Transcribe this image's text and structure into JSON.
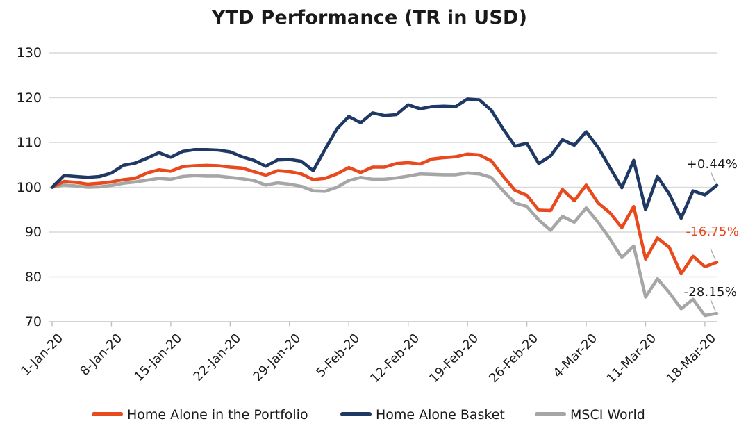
{
  "title": "YTD Performance (TR in USD)",
  "colors": {
    "portfolio": "#E8491D",
    "basket": "#1F3864",
    "msci": "#A6A6A6",
    "gridline": "#D9D9D9",
    "axis_line": "#C9C9C9",
    "tick": "#BFBFBF",
    "leader_line": "#ADADAD",
    "text": "#1A1A1A"
  },
  "legend": {
    "items": [
      {
        "label": "Home Alone in the Portfolio",
        "color": "#E8491D"
      },
      {
        "label": "Home Alone Basket",
        "color": "#1F3864"
      },
      {
        "label": "MSCI World",
        "color": "#A6A6A6"
      }
    ]
  },
  "annotations": [
    {
      "text": "+0.44%",
      "series": "Home Alone Basket",
      "color": "#1A1A1A"
    },
    {
      "text": "-16.75%",
      "series": "Home Alone in the Portfolio",
      "color": "#E8491D"
    },
    {
      "text": "-28.15%",
      "series": "MSCI World",
      "color": "#1A1A1A"
    }
  ],
  "chart_data": {
    "type": "line",
    "title": "YTD Performance (TR in USD)",
    "xlabel": "",
    "ylabel": "",
    "ylim": [
      70,
      130
    ],
    "y_ticks": [
      70,
      80,
      90,
      100,
      110,
      120,
      130
    ],
    "grid": true,
    "legend_position": "bottom",
    "x_tick_labels": [
      "1-Jan-20",
      "8-Jan-20",
      "15-Jan-20",
      "22-Jan-20",
      "29-Jan-20",
      "5-Feb-20",
      "12-Feb-20",
      "19-Feb-20",
      "26-Feb-20",
      "4-Mar-20",
      "11-Mar-20",
      "18-Mar-20"
    ],
    "x_tick_every": 5,
    "x": [
      "1-Jan-20",
      "2-Jan-20",
      "3-Jan-20",
      "6-Jan-20",
      "7-Jan-20",
      "8-Jan-20",
      "9-Jan-20",
      "10-Jan-20",
      "13-Jan-20",
      "14-Jan-20",
      "15-Jan-20",
      "16-Jan-20",
      "17-Jan-20",
      "20-Jan-20",
      "21-Jan-20",
      "22-Jan-20",
      "23-Jan-20",
      "24-Jan-20",
      "27-Jan-20",
      "28-Jan-20",
      "29-Jan-20",
      "30-Jan-20",
      "31-Jan-20",
      "3-Feb-20",
      "4-Feb-20",
      "5-Feb-20",
      "6-Feb-20",
      "7-Feb-20",
      "10-Feb-20",
      "11-Feb-20",
      "12-Feb-20",
      "13-Feb-20",
      "14-Feb-20",
      "17-Feb-20",
      "18-Feb-20",
      "19-Feb-20",
      "20-Feb-20",
      "21-Feb-20",
      "24-Feb-20",
      "25-Feb-20",
      "26-Feb-20",
      "27-Feb-20",
      "28-Feb-20",
      "2-Mar-20",
      "3-Mar-20",
      "4-Mar-20",
      "5-Mar-20",
      "6-Mar-20",
      "9-Mar-20",
      "10-Mar-20",
      "11-Mar-20",
      "12-Mar-20",
      "13-Mar-20",
      "16-Mar-20",
      "17-Mar-20",
      "18-Mar-20",
      "19-Mar-20"
    ],
    "series": [
      {
        "name": "MSCI World",
        "color": "#A6A6A6",
        "end_label": "-28.15%",
        "values": [
          100.0,
          100.5,
          100.3,
          100.0,
          100.1,
          100.4,
          100.9,
          101.2,
          101.6,
          102.0,
          101.8,
          102.4,
          102.6,
          102.5,
          102.5,
          102.2,
          101.9,
          101.5,
          100.5,
          101.0,
          100.7,
          100.2,
          99.2,
          99.1,
          100.0,
          101.5,
          102.2,
          101.8,
          101.8,
          102.1,
          102.5,
          103.0,
          102.9,
          102.8,
          102.8,
          103.2,
          103.0,
          102.2,
          99.2,
          96.5,
          95.7,
          92.7,
          90.4,
          93.5,
          92.2,
          95.4,
          92.2,
          88.5,
          84.3,
          86.9,
          75.5,
          79.6,
          76.5,
          72.9,
          75.0,
          71.4,
          71.85
        ]
      },
      {
        "name": "Home Alone in the Portfolio",
        "color": "#E8491D",
        "end_label": "-16.75%",
        "values": [
          100.0,
          101.3,
          101.1,
          100.7,
          100.9,
          101.2,
          101.7,
          102.0,
          103.2,
          103.9,
          103.6,
          104.6,
          104.8,
          104.9,
          104.8,
          104.5,
          104.3,
          103.5,
          102.7,
          103.7,
          103.5,
          103.0,
          101.7,
          102.0,
          103.0,
          104.4,
          103.3,
          104.5,
          104.5,
          105.3,
          105.5,
          105.2,
          106.3,
          106.6,
          106.8,
          107.4,
          107.2,
          105.9,
          102.5,
          99.3,
          98.2,
          94.9,
          94.8,
          99.5,
          97.0,
          100.5,
          96.5,
          94.3,
          91.0,
          95.7,
          84.0,
          88.7,
          86.6,
          80.7,
          84.6,
          82.3,
          83.25
        ]
      },
      {
        "name": "Home Alone Basket",
        "color": "#1F3864",
        "end_label": "+0.44%",
        "values": [
          100.0,
          102.6,
          102.4,
          102.2,
          102.4,
          103.2,
          104.9,
          105.4,
          106.5,
          107.7,
          106.7,
          108.0,
          108.4,
          108.4,
          108.3,
          107.9,
          106.8,
          106.0,
          104.7,
          106.1,
          106.2,
          105.8,
          103.7,
          108.5,
          113.0,
          115.8,
          114.4,
          116.6,
          116.0,
          116.2,
          118.4,
          117.5,
          118.0,
          118.1,
          118.0,
          119.7,
          119.5,
          117.2,
          113.0,
          109.2,
          109.8,
          105.3,
          107.0,
          110.6,
          109.4,
          112.4,
          108.9,
          104.4,
          99.9,
          106.0,
          95.0,
          102.4,
          98.5,
          93.1,
          99.2,
          98.3,
          100.44
        ]
      }
    ]
  }
}
